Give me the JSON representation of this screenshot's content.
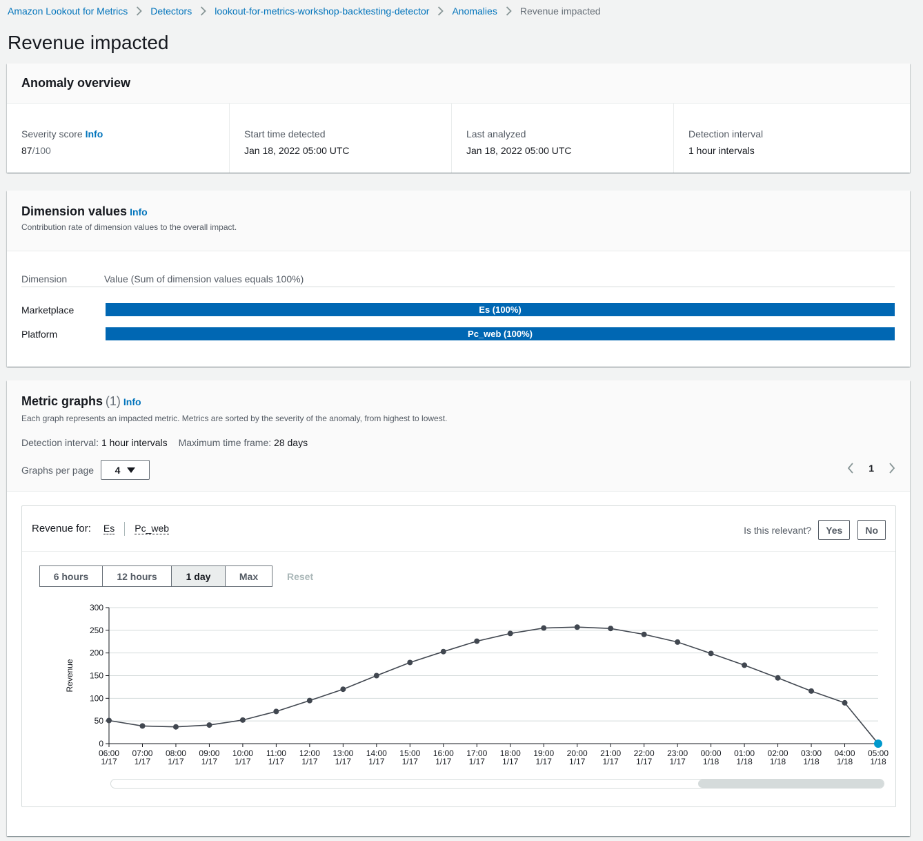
{
  "breadcrumb": {
    "items": [
      "Amazon Lookout for Metrics",
      "Detectors",
      "lookout-for-metrics-workshop-backtesting-detector",
      "Anomalies"
    ],
    "current": "Revenue impacted"
  },
  "page_title": "Revenue impacted",
  "overview": {
    "title": "Anomaly overview",
    "severity_label": "Severity score",
    "severity_info": "Info",
    "severity_score": "87",
    "severity_total": "/100",
    "start_label": "Start time detected",
    "start_value": "Jan 18, 2022 05:00 UTC",
    "analyzed_label": "Last analyzed",
    "analyzed_value": "Jan 18, 2022 05:00 UTC",
    "interval_label": "Detection interval",
    "interval_value": "1 hour intervals"
  },
  "dimensions": {
    "title": "Dimension values",
    "info": "Info",
    "description": "Contribution rate of dimension values to the overall impact.",
    "col_dimension": "Dimension",
    "col_value": "Value (Sum of dimension values equals 100%)",
    "rows": [
      {
        "name": "Marketplace",
        "bar_label": "Es (100%)",
        "share": 1.0
      },
      {
        "name": "Platform",
        "bar_label": "Pc_web (100%)",
        "share": 1.0
      }
    ]
  },
  "metrics": {
    "title": "Metric graphs",
    "count": "(1)",
    "info": "Info",
    "description": "Each graph represents an impacted metric. Metrics are sorted by the severity of the anomaly, from highest to lowest.",
    "interval_label": "Detection interval:",
    "interval_value": "1 hour intervals",
    "timeframe_label": "Maximum time frame:",
    "timeframe_value": "28 days",
    "per_page_label": "Graphs per page",
    "per_page_value": "4",
    "page_number": "1"
  },
  "graph": {
    "revenue_for": "Revenue for:",
    "tags": [
      "Es",
      "Pc_web"
    ],
    "relevant_label": "Is this relevant?",
    "yes": "Yes",
    "no": "No",
    "ranges": [
      "6 hours",
      "12 hours",
      "1 day",
      "Max"
    ],
    "active_range": "1 day",
    "reset": "Reset",
    "scroll_position": 0.76
  },
  "colors": {
    "link": "#0073bb",
    "bar": "#0067b3",
    "line": "#414750",
    "anomaly_point": "#0099cc"
  },
  "chart_data": {
    "type": "line",
    "ylabel": "Revenue",
    "ylim": [
      0,
      300
    ],
    "yticks": [
      0,
      50,
      100,
      150,
      200,
      250,
      300
    ],
    "grid": true,
    "x": [
      "06:00|1/17",
      "07:00|1/17",
      "08:00|1/17",
      "09:00|1/17",
      "10:00|1/17",
      "11:00|1/17",
      "12:00|1/17",
      "13:00|1/17",
      "14:00|1/17",
      "15:00|1/17",
      "16:00|1/17",
      "17:00|1/17",
      "18:00|1/17",
      "19:00|1/17",
      "20:00|1/17",
      "21:00|1/17",
      "22:00|1/17",
      "23:00|1/17",
      "00:00|1/18",
      "01:00|1/18",
      "02:00|1/18",
      "03:00|1/18",
      "04:00|1/18",
      "05:00|1/18"
    ],
    "series": [
      {
        "values": [
          51,
          39,
          37,
          41,
          52,
          71,
          95,
          120,
          150,
          179,
          203,
          226,
          243,
          255,
          257,
          254,
          241,
          224,
          199,
          173,
          145,
          116,
          90,
          0
        ]
      }
    ],
    "anomaly_index": 23
  }
}
